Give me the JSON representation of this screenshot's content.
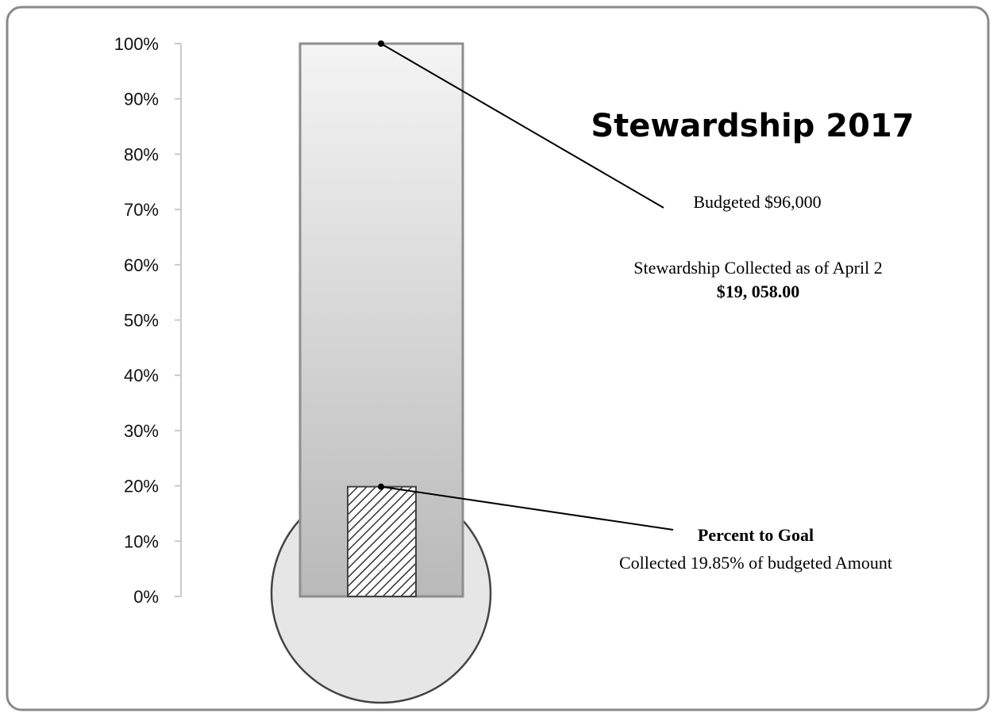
{
  "chart_data": {
    "type": "bar",
    "title": "Stewardship 2017",
    "xlabel": "",
    "ylabel": "",
    "ylim": [
      0,
      100
    ],
    "y_ticks": [
      0,
      10,
      20,
      30,
      40,
      50,
      60,
      70,
      80,
      90,
      100
    ],
    "y_tick_labels": [
      "0%",
      "10%",
      "20%",
      "30%",
      "40%",
      "50%",
      "60%",
      "70%",
      "80%",
      "90%",
      "100%"
    ],
    "grid": false,
    "legend": "none",
    "series": [
      {
        "values": [
          100
        ],
        "color": "#cfcfcf"
      },
      {
        "values": [
          19.85
        ],
        "pattern": "diagonal-hatch",
        "color": "#333333"
      }
    ],
    "annotations": {
      "budget": {
        "value": 100,
        "label": "Budgeted $96,000"
      },
      "collected": {
        "line1": "Stewardship Collected as of April 2",
        "line2": "$19, 058.00"
      },
      "percent": {
        "value": 19.85,
        "heading": "Percent to Goal",
        "text": "Collected 19.85% of budgeted Amount"
      }
    }
  }
}
